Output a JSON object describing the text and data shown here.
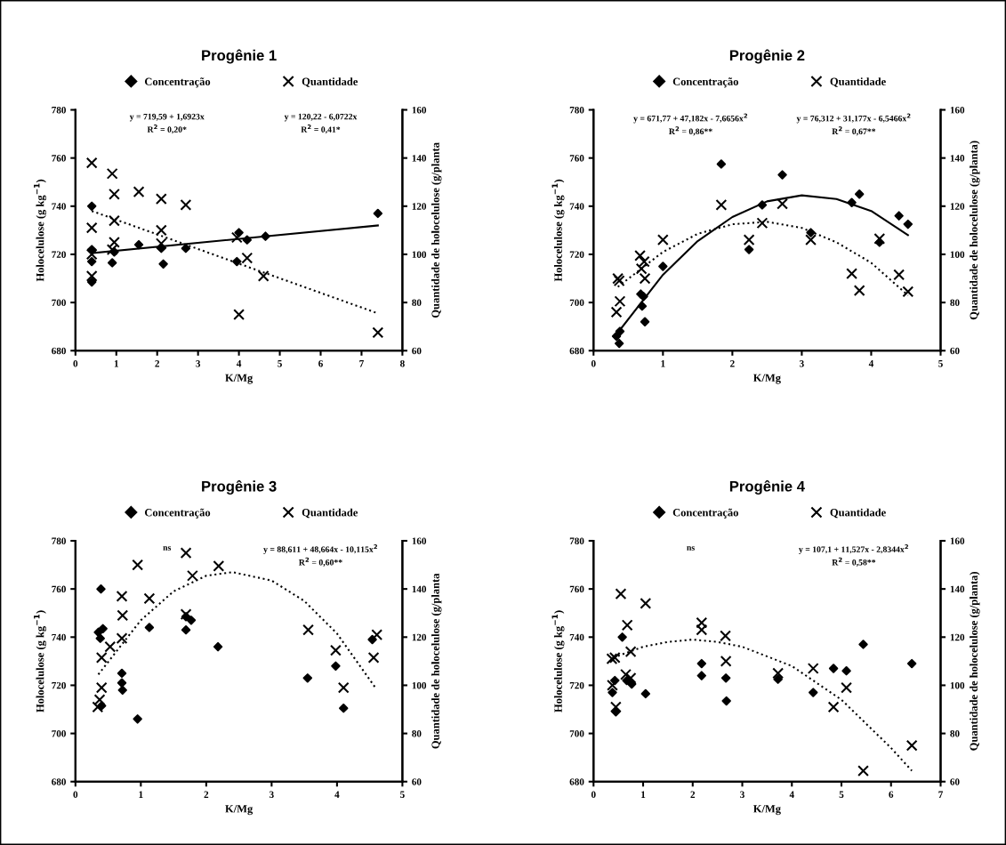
{
  "chart_data": [
    {
      "type": "scatter",
      "title": "Progênie 1",
      "xlabel": "K/Mg",
      "ylabel": "Holocelulose (g kg$^{−1}$)",
      "y2label": "Quantidade de holocelulose (g/planta",
      "xlim": [
        0,
        8
      ],
      "xticks": [
        0,
        1,
        2,
        3,
        4,
        5,
        6,
        7,
        8
      ],
      "ylim": [
        680,
        780
      ],
      "yticks": [
        680,
        700,
        720,
        740,
        760,
        780
      ],
      "y2lim": [
        60,
        160
      ],
      "y2ticks": [
        60,
        80,
        100,
        120,
        140,
        160
      ],
      "legend": "top",
      "grid": false,
      "annotations": [
        "y = 719,59 + 1,6923x\nR$^{2}$ = 0,20*",
        "y = 120,22 - 6,0722x\nR$^{2}$ = 0,41*"
      ],
      "series": [
        {
          "name": "Concentração",
          "type": "scatter",
          "marker": "diamond",
          "color": "#000000",
          "x": [
            0.4,
            0.4,
            0.4,
            0.4,
            0.9,
            0.95,
            1.55,
            2.1,
            2.15,
            2.7,
            3.95,
            4.0,
            4.2,
            4.65,
            7.4
          ],
          "values": [
            740,
            722,
            717,
            708.5,
            716.5,
            721,
            724,
            722.5,
            716,
            722.5,
            717,
            729,
            726,
            727.5,
            737
          ]
        },
        {
          "name": "Quantidade",
          "type": "scatter",
          "marker": "cross",
          "axis": "y2",
          "color": "#000000",
          "x": [
            0.4,
            0.4,
            0.4,
            0.4,
            0.9,
            0.95,
            0.95,
            0.95,
            0.9,
            1.55,
            2.1,
            2.1,
            2.1,
            2.7,
            3.95,
            4.2,
            4.6,
            4.0,
            7.4
          ],
          "values": [
            138,
            111,
            100,
            91,
            133.5,
            125,
            114,
            105,
            102,
            126,
            123,
            110,
            104.5,
            120.5,
            107,
            98.5,
            91,
            75,
            67.5
          ]
        },
        {
          "type": "line",
          "line_style": "solid",
          "color": "#000000",
          "x": [
            0.4,
            7.4
          ],
          "values": [
            720.5,
            732
          ]
        },
        {
          "type": "line",
          "line_style": "dotted",
          "axis": "y2",
          "color": "#000000",
          "x": [
            0.4,
            7.4
          ],
          "values": [
            118,
            75.5
          ]
        }
      ]
    },
    {
      "type": "scatter",
      "title": "Progênie 2",
      "xlabel": "K/Mg",
      "ylabel": "Holocelulose (g kg$^{−1}$)",
      "y2label": "Quantidade de holocelulose (g/planta)",
      "xlim": [
        0,
        5
      ],
      "xticks": [
        0,
        1,
        2,
        3,
        4,
        5
      ],
      "ylim": [
        680,
        780
      ],
      "yticks": [
        680,
        700,
        720,
        740,
        760,
        780
      ],
      "y2lim": [
        60,
        160
      ],
      "y2ticks": [
        60,
        80,
        100,
        120,
        140,
        160
      ],
      "legend": "top",
      "grid": false,
      "annotations": [
        "y = 671,77 + 47,182x - 7,6656x$^{2}$\nR$^{2}$ = 0,86**",
        "y = 76,312 + 31,177x - 6,5466x$^{2}$\nR$^{2}$ = 0,67**"
      ],
      "series": [
        {
          "name": "Concentração",
          "type": "scatter",
          "marker": "diamond",
          "color": "#000000",
          "x": [
            0.33,
            0.37,
            0.38,
            0.68,
            0.7,
            0.72,
            0.74,
            1.0,
            1.84,
            2.24,
            2.43,
            2.72,
            3.13,
            3.72,
            3.83,
            4.12,
            4.4,
            4.53
          ],
          "values": [
            686,
            683,
            688,
            703.5,
            698.5,
            702.5,
            692,
            715,
            757.5,
            722,
            740.5,
            753,
            729,
            741.5,
            745,
            725,
            736,
            732.5
          ]
        },
        {
          "name": "Quantidade",
          "type": "scatter",
          "marker": "cross",
          "axis": "y2",
          "color": "#000000",
          "x": [
            0.33,
            0.35,
            0.37,
            0.38,
            0.67,
            0.69,
            0.73,
            0.74,
            1.0,
            1.84,
            2.24,
            2.43,
            2.72,
            3.13,
            3.72,
            3.83,
            4.12,
            4.4,
            4.53
          ],
          "values": [
            76,
            90,
            89,
            80.5,
            99.5,
            94,
            97,
            90,
            106,
            120.5,
            106,
            113,
            121,
            106,
            92,
            85,
            106.5,
            91.5,
            84.5
          ]
        },
        {
          "type": "line",
          "line_style": "solid",
          "color": "#000000",
          "x": [
            0.35,
            1,
            1.5,
            2,
            2.5,
            3,
            3.5,
            4,
            4.53
          ],
          "values": [
            687.5,
            711.5,
            725.5,
            735.5,
            742,
            744.5,
            743,
            738,
            728
          ]
        },
        {
          "type": "line",
          "line_style": "dotted",
          "axis": "y2",
          "color": "#000000",
          "x": [
            0.35,
            1,
            1.5,
            2,
            2.5,
            3,
            3.5,
            4,
            4.53
          ],
          "values": [
            86.5,
            101,
            108.5,
            112.5,
            113.5,
            111,
            105,
            96.5,
            83
          ]
        }
      ]
    },
    {
      "type": "scatter",
      "title": "Progênie 3",
      "xlabel": "K/Mg",
      "ylabel": "Holocelulose (g kg$^{−1}$)",
      "y2label": "Quantidade de holocelulose (g/planta",
      "xlim": [
        0,
        5
      ],
      "xticks": [
        0,
        1,
        2,
        3,
        4,
        5
      ],
      "ylim": [
        680,
        780
      ],
      "yticks": [
        680,
        700,
        720,
        740,
        760,
        780
      ],
      "y2lim": [
        60,
        160
      ],
      "y2ticks": [
        60,
        80,
        100,
        120,
        140,
        160
      ],
      "legend": "top",
      "grid": false,
      "annotations": [
        "ns",
        "y = 88,611 + 48,664x - 10,115x$^{2}$\nR$^{2}$ = 0,60**"
      ],
      "series": [
        {
          "name": "Concentração",
          "type": "scatter",
          "marker": "diamond",
          "color": "#000000",
          "x": [
            0.35,
            0.38,
            0.39,
            0.42,
            0.4,
            0.71,
            0.71,
            0.72,
            0.95,
            1.13,
            1.69,
            1.69,
            1.77,
            2.18,
            3.55,
            3.98,
            4.1,
            4.54
          ],
          "values": [
            742,
            739.5,
            760,
            743.5,
            711.5,
            725,
            721,
            718,
            706,
            744,
            743,
            748.5,
            747,
            736,
            723,
            728,
            710.5,
            739
          ]
        },
        {
          "name": "Quantidade",
          "type": "scatter",
          "marker": "cross",
          "axis": "y2",
          "color": "#000000",
          "x": [
            0.34,
            0.37,
            0.4,
            0.4,
            0.53,
            0.71,
            0.72,
            0.71,
            0.95,
            1.13,
            1.69,
            1.69,
            1.79,
            2.19,
            3.56,
            3.98,
            4.1,
            4.56,
            4.61
          ],
          "values": [
            91,
            94,
            99,
            111.5,
            116,
            137,
            129,
            119.5,
            150,
            136,
            155,
            129.5,
            145.5,
            149.5,
            123,
            114.5,
            99,
            111.5,
            121
          ]
        },
        {
          "type": "line",
          "line_style": "dotted",
          "axis": "y2",
          "color": "#000000",
          "x": [
            0.35,
            1,
            1.5,
            2,
            2.4,
            3,
            3.5,
            4,
            4.6
          ],
          "values": [
            104.5,
            127,
            139,
            145.5,
            147,
            143.5,
            135,
            121.5,
            98.5
          ]
        }
      ]
    },
    {
      "type": "scatter",
      "title": "Progênie 4",
      "xlabel": "K/Mg",
      "ylabel": "Holocelulose (g kg$^{−1}$)",
      "y2label": "Quantidade de holocelulose (g/planta)",
      "xlim": [
        0,
        7
      ],
      "xticks": [
        0,
        1,
        2,
        3,
        4,
        5,
        6,
        7
      ],
      "ylim": [
        680,
        780
      ],
      "yticks": [
        680,
        700,
        720,
        740,
        760,
        780
      ],
      "y2lim": [
        60,
        160
      ],
      "y2ticks": [
        60,
        80,
        100,
        120,
        140,
        160
      ],
      "legend": "top",
      "grid": false,
      "annotations": [
        "ns",
        "y = 107,1 + 11,527x - 2,8344x$^{2}$\nR$^{2}$ = 0,58**"
      ],
      "series": [
        {
          "name": "Concentração",
          "type": "scatter",
          "marker": "diamond",
          "color": "#000000",
          "x": [
            0.38,
            0.45,
            0.43,
            0.58,
            0.67,
            0.77,
            1.05,
            2.18,
            2.18,
            2.67,
            2.68,
            3.72,
            4.43,
            4.84,
            5.1,
            5.44,
            6.42
          ],
          "values": [
            717,
            709,
            722,
            740,
            722,
            720.5,
            716.5,
            729,
            724,
            723,
            713.5,
            722.5,
            717,
            727,
            726,
            737,
            729
          ]
        },
        {
          "name": "Quantidade",
          "type": "scatter",
          "marker": "cross",
          "axis": "y2",
          "color": "#000000",
          "x": [
            0.37,
            0.43,
            0.38,
            0.45,
            0.55,
            0.68,
            0.65,
            0.75,
            0.75,
            1.05,
            2.18,
            2.18,
            2.66,
            2.67,
            3.72,
            4.43,
            4.84,
            5.1,
            5.44,
            6.42
          ],
          "values": [
            111,
            111.5,
            100,
            91,
            138,
            125,
            104.5,
            114,
            103,
            134,
            126,
            123,
            120.5,
            110,
            105,
            107,
            91,
            99,
            64.5,
            75
          ]
        },
        {
          "type": "line",
          "line_style": "dotted",
          "axis": "y2",
          "color": "#000000",
          "x": [
            0.4,
            1,
            1.5,
            2,
            2.5,
            3,
            4,
            5,
            6,
            6.42
          ],
          "values": [
            111.5,
            116,
            118,
            119,
            118,
            116,
            108,
            94,
            74,
            64.5
          ]
        }
      ]
    }
  ]
}
